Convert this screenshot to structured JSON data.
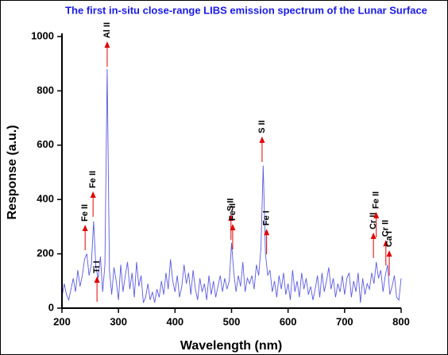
{
  "chart_data": {
    "type": "line",
    "title": "The first in-situ close-range LIBS emission spectrum of the Lunar Surface",
    "x_label": "Wavelength (nm)",
    "y_label": "Response (a.u.)",
    "color": "#5a5ae0",
    "annotation_color": "#e00000",
    "xlim": [
      200,
      800
    ],
    "ylim": [
      0,
      1000
    ],
    "xticks": [
      200,
      300,
      400,
      500,
      600,
      700,
      800
    ],
    "yticks": [
      0,
      200,
      400,
      600,
      800,
      1000
    ],
    "x": [
      200,
      204,
      208,
      212,
      216,
      220,
      224,
      228,
      232,
      236,
      240,
      244,
      248,
      252,
      256,
      260,
      264,
      268,
      272,
      276,
      280,
      284,
      288,
      292,
      296,
      300,
      304,
      308,
      312,
      316,
      320,
      324,
      328,
      332,
      336,
      340,
      344,
      348,
      352,
      356,
      360,
      364,
      368,
      372,
      376,
      380,
      384,
      388,
      392,
      396,
      400,
      404,
      408,
      412,
      416,
      420,
      424,
      428,
      432,
      436,
      440,
      444,
      448,
      452,
      456,
      460,
      464,
      468,
      472,
      476,
      480,
      484,
      488,
      492,
      496,
      500,
      504,
      508,
      512,
      516,
      520,
      524,
      528,
      532,
      536,
      540,
      544,
      548,
      552,
      556,
      560,
      564,
      568,
      572,
      576,
      580,
      584,
      588,
      592,
      596,
      600,
      604,
      608,
      612,
      616,
      620,
      624,
      628,
      632,
      636,
      640,
      644,
      648,
      652,
      656,
      660,
      664,
      668,
      672,
      676,
      680,
      684,
      688,
      692,
      696,
      700,
      704,
      708,
      712,
      716,
      720,
      724,
      728,
      732,
      736,
      740,
      744,
      748,
      752,
      756,
      760,
      764,
      768,
      772,
      776,
      780,
      784,
      788,
      792,
      796,
      800
    ],
    "values": [
      40,
      90,
      50,
      30,
      70,
      110,
      60,
      140,
      80,
      120,
      180,
      200,
      120,
      160,
      320,
      150,
      110,
      190,
      60,
      160,
      880,
      140,
      50,
      150,
      100,
      30,
      160,
      60,
      120,
      170,
      70,
      130,
      40,
      170,
      80,
      120,
      20,
      40,
      90,
      30,
      60,
      20,
      70,
      40,
      100,
      50,
      130,
      70,
      180,
      100,
      60,
      120,
      40,
      80,
      160,
      90,
      130,
      50,
      140,
      70,
      30,
      110,
      60,
      90,
      30,
      120,
      50,
      100,
      40,
      80,
      120,
      60,
      110,
      70,
      100,
      240,
      130,
      60,
      120,
      80,
      170,
      60,
      110,
      90,
      120,
      70,
      160,
      120,
      220,
      525,
      200,
      120,
      140,
      60,
      100,
      40,
      120,
      70,
      130,
      50,
      90,
      30,
      140,
      60,
      100,
      40,
      130,
      70,
      110,
      50,
      80,
      30,
      70,
      120,
      40,
      130,
      60,
      100,
      150,
      70,
      110,
      40,
      90,
      60,
      120,
      50,
      110,
      130,
      40,
      100,
      60,
      130,
      20,
      110,
      50,
      90,
      70,
      130,
      90,
      170,
      110,
      140,
      60,
      120,
      160,
      50,
      80,
      120,
      40,
      30,
      110
    ],
    "annotations": [
      {
        "label": "Fe II",
        "x": 241,
        "y": 307
      },
      {
        "label": "Fe II",
        "x": 255,
        "y": 430
      },
      {
        "label": "Ti I",
        "x": 262,
        "y": 117
      },
      {
        "label": "Al II",
        "x": 280,
        "y": 982
      },
      {
        "label": "S II",
        "x": 499,
        "y": 345
      },
      {
        "label": "Fe II",
        "x": 502,
        "y": 310
      },
      {
        "label": "S II",
        "x": 554,
        "y": 632
      },
      {
        "label": "Fe I",
        "x": 562,
        "y": 292
      },
      {
        "label": "Cr II",
        "x": 751,
        "y": 278
      },
      {
        "label": "Fe II",
        "x": 756,
        "y": 354
      },
      {
        "label": "Cr II",
        "x": 773,
        "y": 251
      },
      {
        "label": "Ca I",
        "x": 779,
        "y": 213
      }
    ]
  }
}
